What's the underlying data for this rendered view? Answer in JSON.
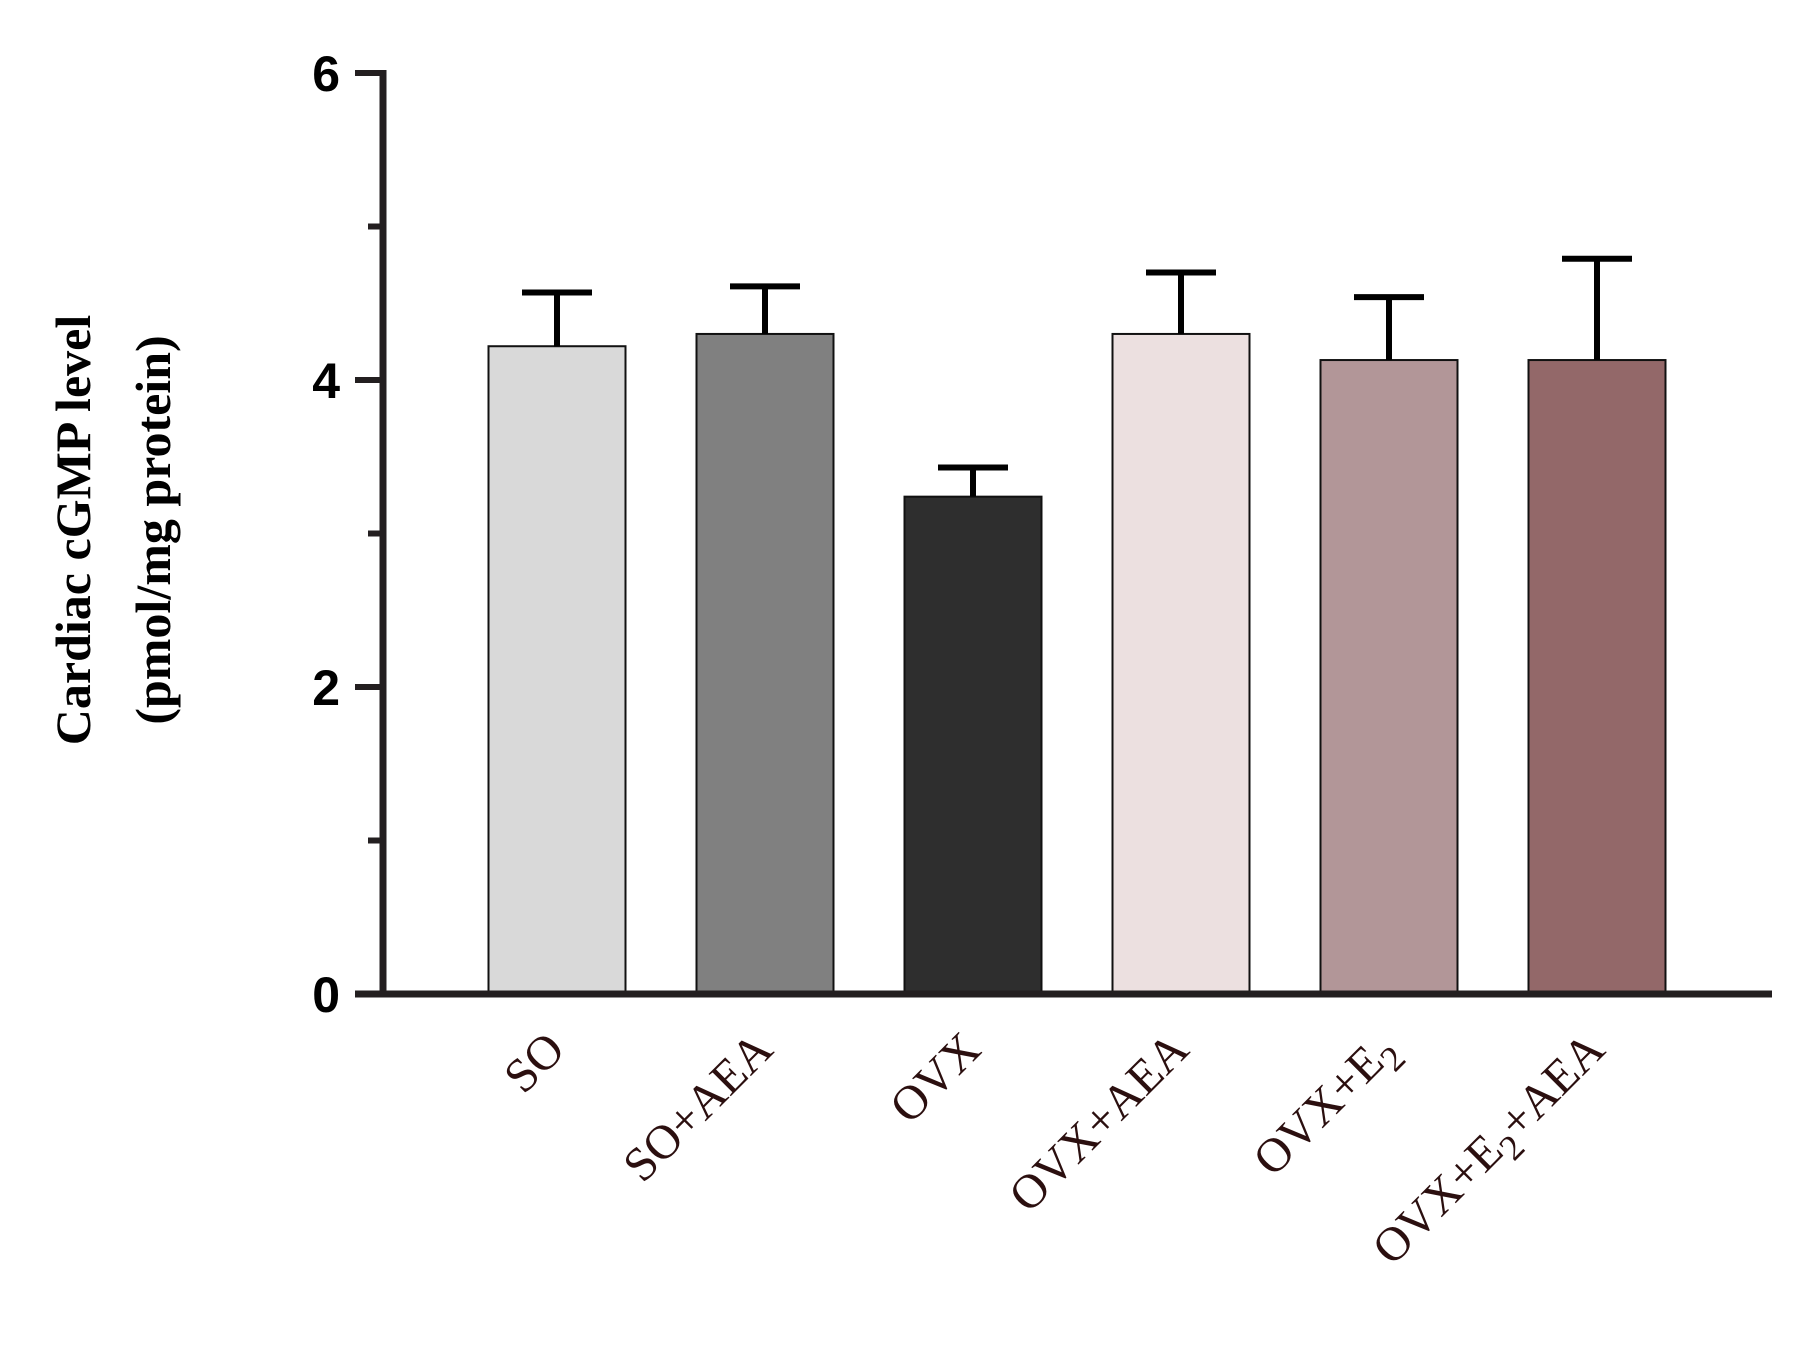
{
  "chart_data": {
    "type": "bar",
    "categories": [
      "SO",
      "SO+AEA",
      "OVX",
      "OVX+AEA",
      "OVX+E2",
      "OVX+E2+AEA"
    ],
    "category_labels": [
      {
        "text": "SO"
      },
      {
        "text": "SO+AEA"
      },
      {
        "text": "OVX"
      },
      {
        "text": "OVX+AEA"
      },
      {
        "text": "OVX+E",
        "sub": "2"
      },
      {
        "text": "OVX+E",
        "sub": "2",
        "tail": "+AEA"
      }
    ],
    "values": [
      4.22,
      4.3,
      3.24,
      4.3,
      4.13,
      4.13
    ],
    "errors": [
      0.35,
      0.31,
      0.19,
      0.4,
      0.41,
      0.66
    ],
    "colors": [
      "#d9d9d9",
      "#808080",
      "#2e2e2e",
      "#ece0e0",
      "#b29698",
      "#936869"
    ],
    "ylabel_line1": "Cardiac cGMP level",
    "ylabel_line2": "(pmol/mg protein)",
    "ylim": [
      0,
      6
    ],
    "yticks": [
      "0",
      "2",
      "4",
      "6"
    ],
    "ytick_values": [
      0,
      2,
      4,
      6
    ],
    "minor_ytick_values": [
      1,
      3,
      5
    ],
    "grid": false
  }
}
